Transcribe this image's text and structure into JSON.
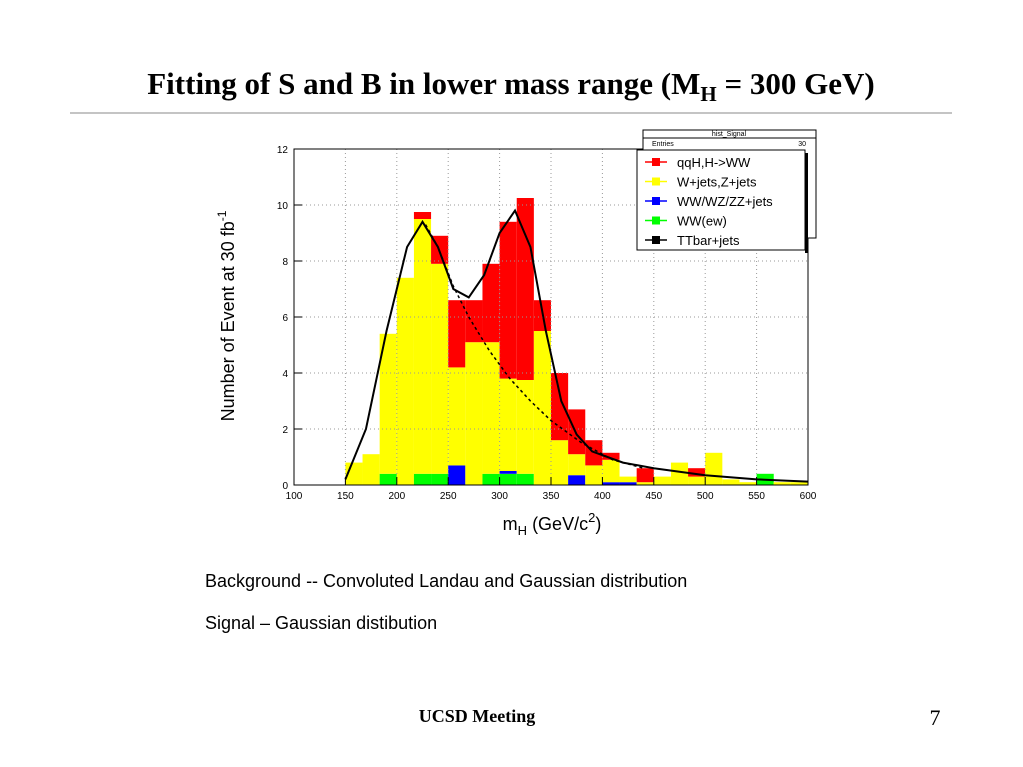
{
  "slide": {
    "title": {
      "main": "Fitting of S and B in lower mass range (M",
      "sub": "H",
      "end": " = 300 GeV)"
    },
    "notes": [
      "Background -- Convoluted Landau and Gaussian distribution",
      "Signal – Gaussian distibution"
    ],
    "footer": "UCSD Meeting",
    "page": "7"
  },
  "chart_data": {
    "type": "histogram",
    "stacked": true,
    "x_label": {
      "main": "m",
      "sub": "H",
      "rest": " (GeV/c",
      "sup": "2",
      "end": ")"
    },
    "y_label": {
      "main": "Number of Event at 30 fb",
      "sup": "-1"
    },
    "stats": {
      "name": "hist_Signal",
      "entries_label": "Entries",
      "entries": 30
    },
    "bins": [
      100,
      116.67,
      133.33,
      150,
      166.67,
      183.33,
      200,
      216.67,
      233.33,
      250,
      266.67,
      283.33,
      300,
      316.67,
      333.33,
      350,
      366.67,
      383.33,
      400,
      416.67,
      433.33,
      450,
      466.67,
      483.33,
      500,
      516.67,
      533.33,
      550,
      566.67,
      583.33,
      600
    ],
    "series": [
      {
        "name": "qqH,H->WW",
        "color": "#ff0000",
        "values": [
          0,
          0,
          0,
          0,
          0,
          0,
          0,
          0.25,
          1.0,
          2.4,
          1.5,
          2.8,
          5.6,
          6.5,
          1.1,
          2.4,
          1.6,
          0.9,
          0.25,
          0,
          0.5,
          0,
          0,
          0.3,
          0,
          0,
          0,
          0,
          0,
          0
        ]
      },
      {
        "name": "W+jets,Z+jets",
        "color": "#ffff00",
        "values": [
          0,
          0,
          0,
          0.8,
          1.1,
          5.0,
          7.4,
          9.1,
          7.5,
          3.5,
          5.1,
          4.7,
          3.3,
          3.35,
          5.5,
          1.6,
          0.75,
          0.7,
          0.8,
          0.2,
          0.1,
          0.3,
          0.8,
          0.3,
          1.15,
          0.2,
          0.1,
          0,
          0.1,
          0.1
        ]
      },
      {
        "name": "WW/WZ/ZZ+jets",
        "color": "#0000ff",
        "values": [
          0,
          0,
          0,
          0,
          0,
          0,
          0,
          0,
          0,
          0.7,
          0,
          0,
          0.1,
          0,
          0,
          0,
          0.35,
          0,
          0.1,
          0.1,
          0,
          0,
          0,
          0,
          0,
          0,
          0,
          0,
          0,
          0
        ]
      },
      {
        "name": "WW(ew)",
        "color": "#00ff00",
        "values": [
          0,
          0,
          0,
          0,
          0,
          0.4,
          0,
          0.4,
          0.4,
          0,
          0,
          0.4,
          0.4,
          0.4,
          0,
          0,
          0,
          0,
          0,
          0,
          0,
          0,
          0,
          0,
          0,
          0,
          0,
          0.4,
          0,
          0
        ]
      },
      {
        "name": "TTbar+jets",
        "color": "#000000",
        "values": [
          0,
          0,
          0,
          0,
          0,
          0,
          0,
          0,
          0,
          0,
          0,
          0,
          0,
          0,
          0,
          0,
          0,
          0,
          0,
          0,
          0,
          0,
          0,
          0,
          0,
          0,
          0,
          0,
          0,
          0
        ]
      }
    ],
    "curves": [
      {
        "style": "solid",
        "color": "#000000",
        "x": [
          150,
          170,
          190,
          210,
          225,
          240,
          255,
          270,
          285,
          300,
          315,
          330,
          345,
          360,
          375,
          390,
          420,
          450,
          500,
          550,
          600
        ],
        "values": [
          0.2,
          2,
          5.5,
          8.5,
          9.4,
          8.5,
          7.0,
          6.7,
          7.5,
          9,
          9.8,
          8.5,
          5.5,
          3,
          1.8,
          1.2,
          0.8,
          0.6,
          0.35,
          0.2,
          0.12
        ]
      },
      {
        "style": "dashed",
        "color": "#000000",
        "x": [
          228,
          240,
          255,
          270,
          290,
          310,
          330,
          350,
          380,
          410,
          440
        ],
        "values": [
          9.3,
          8.5,
          7.1,
          6.0,
          4.8,
          3.8,
          3.0,
          2.3,
          1.5,
          0.9,
          0.6
        ]
      }
    ],
    "xlim": [
      100,
      600
    ],
    "ylim": [
      0,
      12
    ],
    "xticks": [
      100,
      150,
      200,
      250,
      300,
      350,
      400,
      450,
      500,
      550,
      600
    ],
    "yticks": [
      0,
      2,
      4,
      6,
      8,
      10,
      12
    ],
    "grid": true,
    "legend": "top-right"
  }
}
